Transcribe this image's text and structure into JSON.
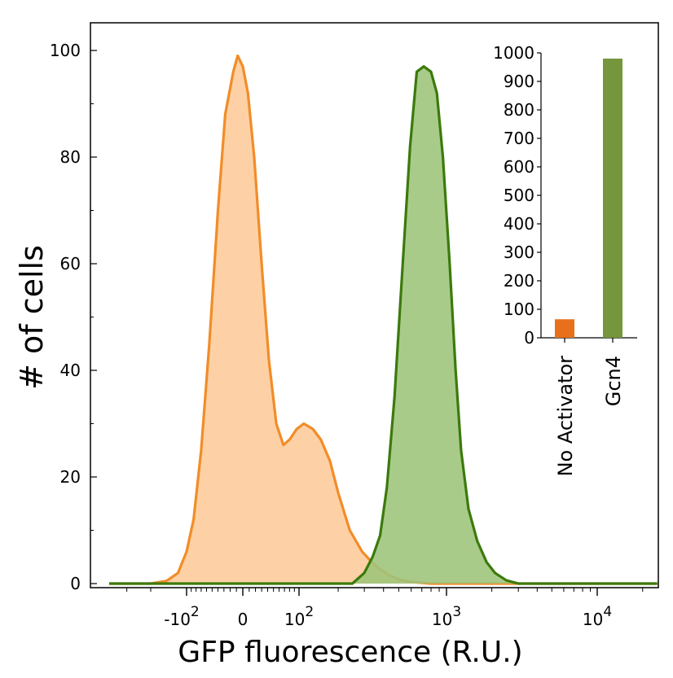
{
  "chart_data": [
    {
      "type": "area",
      "xlabel": "GFP fluorescence (R.U.)",
      "ylabel": "# of cells",
      "ylim": [
        0,
        100
      ],
      "yticks": [
        0,
        20,
        40,
        60,
        80,
        100
      ],
      "xscale": "biexponential",
      "xlim": [
        -400,
        25000
      ],
      "xtick_labels": [
        {
          "value": -100,
          "base": "-10",
          "exp": "2"
        },
        {
          "value": 0,
          "base": "0",
          "exp": ""
        },
        {
          "value": 100,
          "base": "10",
          "exp": "2"
        },
        {
          "value": 1000,
          "base": "10",
          "exp": "3"
        },
        {
          "value": 10000,
          "base": "10",
          "exp": "4"
        }
      ],
      "series": [
        {
          "color": "#f28c28",
          "fill": "#fdcb98",
          "points": [
            [
              -400,
              0
            ],
            [
              -200,
              0
            ],
            [
              -150,
              0.5
            ],
            [
              -120,
              2
            ],
            [
              -100,
              6
            ],
            [
              -85,
              12
            ],
            [
              -70,
              25
            ],
            [
              -55,
              45
            ],
            [
              -40,
              70
            ],
            [
              -28,
              88
            ],
            [
              -15,
              96
            ],
            [
              -8,
              99
            ],
            [
              0,
              97
            ],
            [
              8,
              92
            ],
            [
              18,
              80
            ],
            [
              30,
              60
            ],
            [
              42,
              42
            ],
            [
              55,
              30
            ],
            [
              68,
              26
            ],
            [
              80,
              27
            ],
            [
              95,
              29
            ],
            [
              110,
              30
            ],
            [
              130,
              29
            ],
            [
              150,
              27
            ],
            [
              175,
              23
            ],
            [
              200,
              17
            ],
            [
              240,
              10
            ],
            [
              290,
              6
            ],
            [
              350,
              3.5
            ],
            [
              420,
              1.8
            ],
            [
              500,
              0.8
            ],
            [
              600,
              0.3
            ],
            [
              800,
              0
            ],
            [
              25000,
              0
            ]
          ]
        },
        {
          "color": "#3b7a0c",
          "fill": "#9dc47a",
          "points": [
            [
              -400,
              0
            ],
            [
              250,
              0
            ],
            [
              300,
              2
            ],
            [
              340,
              5
            ],
            [
              380,
              9
            ],
            [
              420,
              18
            ],
            [
              470,
              35
            ],
            [
              530,
              60
            ],
            [
              590,
              82
            ],
            [
              650,
              96
            ],
            [
              720,
              97
            ],
            [
              800,
              96
            ],
            [
              870,
              92
            ],
            [
              950,
              80
            ],
            [
              1050,
              60
            ],
            [
              1150,
              40
            ],
            [
              1250,
              25
            ],
            [
              1400,
              14
            ],
            [
              1600,
              8
            ],
            [
              1850,
              4
            ],
            [
              2100,
              2
            ],
            [
              2500,
              0.6
            ],
            [
              3000,
              0
            ],
            [
              25000,
              0
            ]
          ]
        }
      ]
    },
    {
      "type": "bar",
      "categories": [
        "No Activator",
        "Gcn4"
      ],
      "values": [
        65,
        980
      ],
      "colors": [
        "#e8701a",
        "#75963d"
      ],
      "ylim": [
        0,
        1000
      ],
      "yticks": [
        0,
        100,
        200,
        300,
        400,
        500,
        600,
        700,
        800,
        900,
        1000
      ],
      "legend": "none"
    }
  ]
}
